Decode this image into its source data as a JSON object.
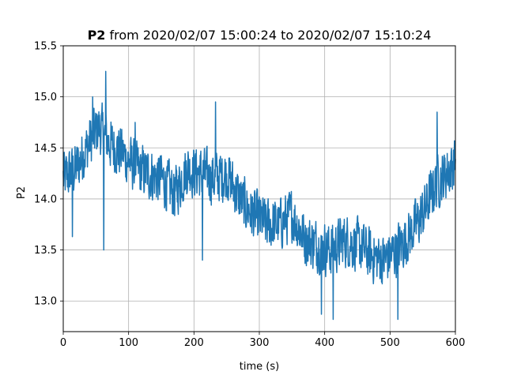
{
  "chart_data": {
    "type": "line",
    "title_bold": "P2",
    "title_rest": " from 2020/02/07 15:00:24 to 2020/02/07 15:10:24",
    "xlabel": "time (s)",
    "ylabel": "P2",
    "xlim": [
      0,
      600
    ],
    "ylim": [
      12.7,
      15.5
    ],
    "xticks": [
      0,
      100,
      200,
      300,
      400,
      500,
      600
    ],
    "yticks": [
      13.0,
      13.5,
      14.0,
      14.5,
      15.0,
      15.5
    ],
    "ytick_labels": [
      "13.0",
      "13.5",
      "14.0",
      "14.5",
      "15.0",
      "15.5"
    ],
    "grid": true,
    "series": [
      {
        "color": "#1f77b4",
        "trend": [
          [
            0,
            14.2
          ],
          [
            20,
            14.3
          ],
          [
            40,
            14.55
          ],
          [
            55,
            14.7
          ],
          [
            70,
            14.55
          ],
          [
            90,
            14.45
          ],
          [
            110,
            14.3
          ],
          [
            130,
            14.25
          ],
          [
            150,
            14.2
          ],
          [
            170,
            14.05
          ],
          [
            190,
            14.3
          ],
          [
            210,
            14.25
          ],
          [
            230,
            14.2
          ],
          [
            250,
            14.25
          ],
          [
            270,
            14.0
          ],
          [
            290,
            13.85
          ],
          [
            310,
            13.75
          ],
          [
            330,
            13.75
          ],
          [
            350,
            13.85
          ],
          [
            370,
            13.6
          ],
          [
            390,
            13.55
          ],
          [
            410,
            13.5
          ],
          [
            430,
            13.6
          ],
          [
            450,
            13.55
          ],
          [
            470,
            13.45
          ],
          [
            490,
            13.4
          ],
          [
            510,
            13.5
          ],
          [
            530,
            13.65
          ],
          [
            550,
            13.85
          ],
          [
            570,
            14.15
          ],
          [
            585,
            14.25
          ],
          [
            600,
            14.35
          ]
        ],
        "noise": 0.3,
        "samples": 1200,
        "min_points": [
          [
            62,
            13.5
          ],
          [
            395,
            12.87
          ],
          [
            413,
            12.82
          ],
          [
            512,
            12.82
          ],
          [
            14,
            13.63
          ],
          [
            213,
            13.4
          ]
        ],
        "max_points": [
          [
            65,
            15.25
          ],
          [
            233,
            14.95
          ],
          [
            572,
            14.85
          ],
          [
            45,
            15.0
          ],
          [
            110,
            14.75
          ]
        ]
      }
    ]
  }
}
